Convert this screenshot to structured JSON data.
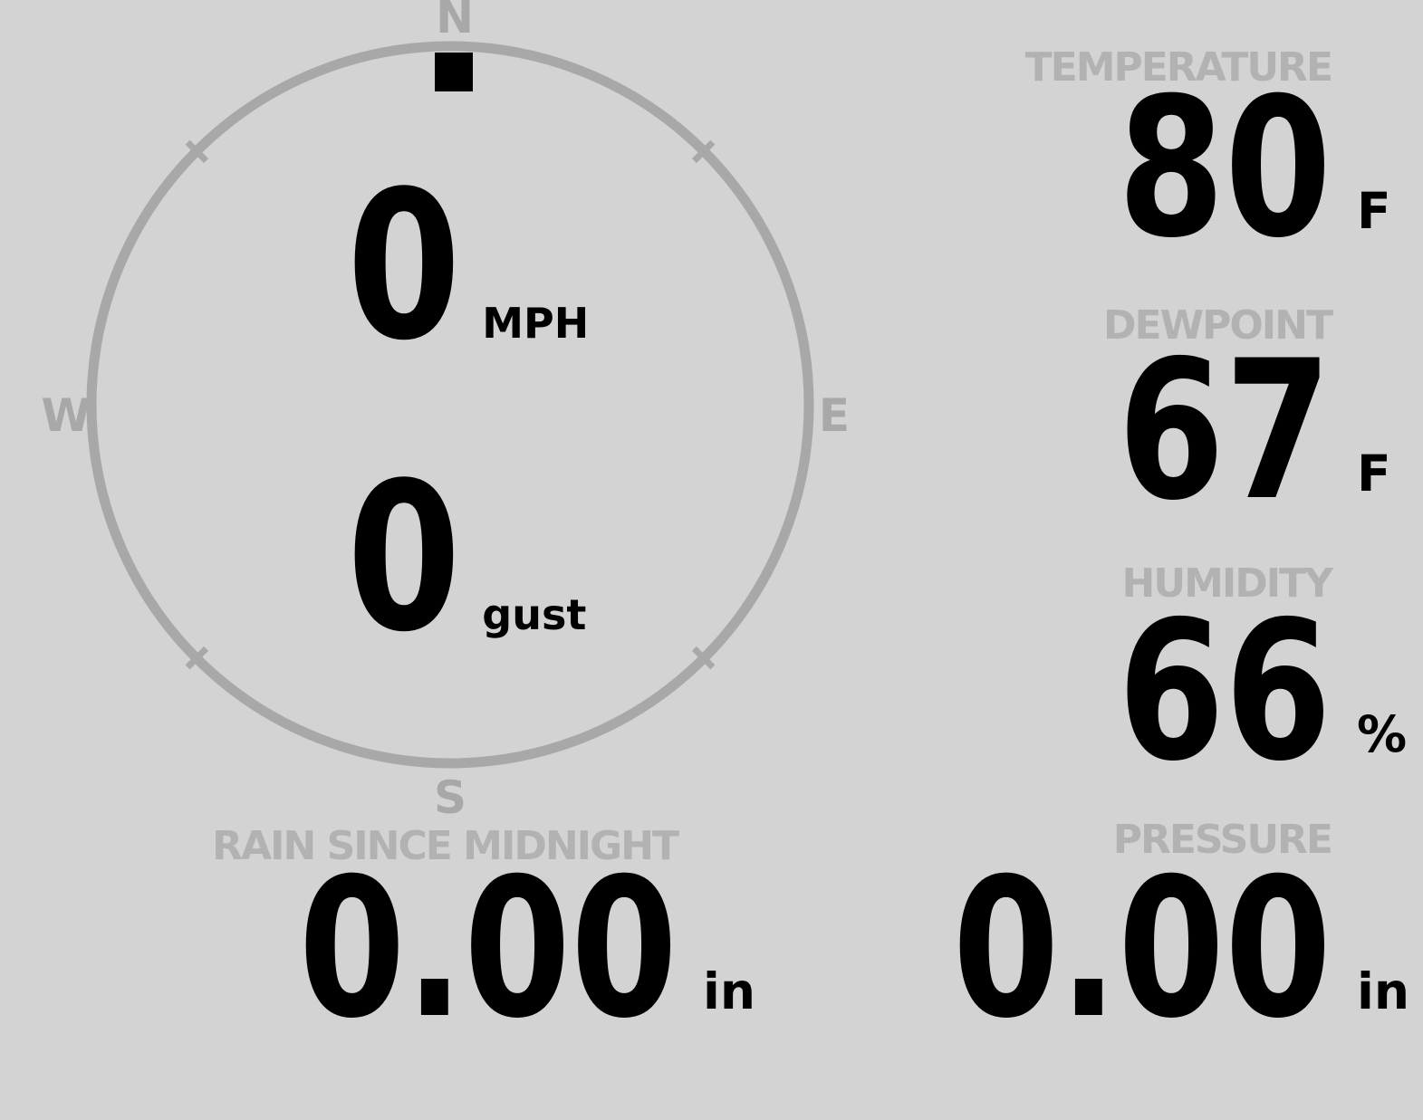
{
  "theme": {
    "background": "#d3d3d3",
    "gauge_color": "#a8a8a8",
    "label_color": "#b2b2b2",
    "value_color": "#000000",
    "marker_color": "#000000"
  },
  "wind": {
    "compass": {
      "north": "N",
      "east": "E",
      "south": "S",
      "west": "W"
    },
    "direction_deg": 0,
    "speed": {
      "value": "0",
      "unit": "MPH"
    },
    "gust": {
      "value": "0",
      "unit": "gust"
    }
  },
  "metrics": {
    "temperature": {
      "label": "TEMPERATURE",
      "value": "80",
      "unit": "F"
    },
    "dewpoint": {
      "label": "DEWPOINT",
      "value": "67",
      "unit": "F"
    },
    "humidity": {
      "label": "HUMIDITY",
      "value": "66",
      "unit": "%"
    },
    "rain_since_midnight": {
      "label": "RAIN SINCE MIDNIGHT",
      "value": "0.00",
      "unit": "in"
    },
    "pressure": {
      "label": "PRESSURE",
      "value": "0.00",
      "unit": "in"
    }
  }
}
